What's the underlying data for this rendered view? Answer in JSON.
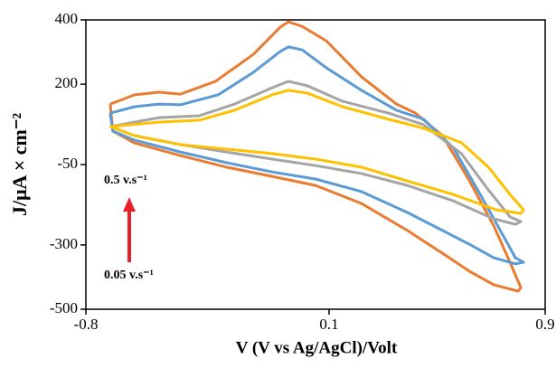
{
  "chart_data": {
    "type": "line",
    "x_label": "V (V vs Ag/AgCl)/Volt",
    "y_label": "J/μA × cm⁻²",
    "xlim": [
      -0.8,
      0.9
    ],
    "xticks": [
      -0.8,
      0.1,
      0.9
    ],
    "ylim": [
      -500,
      400
    ],
    "yticks": [
      400,
      200,
      -50,
      -300,
      -500
    ],
    "series": [
      {
        "color": "#e97c30",
        "x": [
          -0.71,
          -0.62,
          -0.53,
          -0.45,
          -0.32,
          -0.18,
          -0.08,
          -0.05,
          0.0,
          0.09,
          0.22,
          0.35,
          0.42,
          0.52,
          0.62,
          0.71,
          0.77,
          0.81,
          0.8,
          0.71,
          0.62,
          0.52,
          0.39,
          0.22,
          0.05,
          -0.11,
          -0.28,
          -0.45,
          -0.62,
          -0.7,
          -0.71
        ],
        "values": [
          138,
          167,
          175,
          169,
          209,
          293,
          378,
          394,
          380,
          335,
          223,
          138,
          110,
          40,
          -101,
          -241,
          -354,
          -433,
          -444,
          -424,
          -382,
          -326,
          -255,
          -171,
          -115,
          -87,
          -58,
          -22,
          17,
          54,
          138
        ]
      },
      {
        "color": "#5b9bd5",
        "x": [
          -0.71,
          -0.62,
          -0.53,
          -0.45,
          -0.31,
          -0.18,
          -0.08,
          -0.05,
          0.0,
          0.09,
          0.22,
          0.35,
          0.45,
          0.56,
          0.66,
          0.74,
          0.79,
          0.82,
          0.79,
          0.71,
          0.62,
          0.52,
          0.39,
          0.22,
          0.05,
          -0.11,
          -0.28,
          -0.45,
          -0.62,
          -0.7,
          -0.71
        ],
        "values": [
          110,
          130,
          138,
          136,
          167,
          237,
          302,
          316,
          307,
          251,
          181,
          119,
          91,
          2,
          -143,
          -264,
          -340,
          -354,
          -359,
          -340,
          -298,
          -255,
          -199,
          -134,
          -95,
          -73,
          -44,
          -11,
          26,
          54,
          110
        ]
      },
      {
        "color": "#a5a5a5",
        "x": [
          -0.71,
          -0.53,
          -0.38,
          -0.25,
          -0.11,
          -0.05,
          0.02,
          0.15,
          0.32,
          0.45,
          0.59,
          0.69,
          0.77,
          0.81,
          0.79,
          0.71,
          0.56,
          0.39,
          0.22,
          0.05,
          -0.11,
          -0.28,
          -0.45,
          -0.62,
          -0.71
        ],
        "values": [
          68,
          96,
          102,
          138,
          189,
          209,
          195,
          147,
          110,
          74,
          -16,
          -129,
          -213,
          -227,
          -236,
          -219,
          -163,
          -115,
          -78,
          -53,
          -33,
          -11,
          12,
          40,
          68
        ]
      },
      {
        "color": "#ffc000",
        "x": [
          -0.71,
          -0.53,
          -0.38,
          -0.25,
          -0.11,
          -0.05,
          0.02,
          0.15,
          0.32,
          0.45,
          0.59,
          0.69,
          0.77,
          0.82,
          0.81,
          0.72,
          0.56,
          0.39,
          0.22,
          0.05,
          -0.11,
          -0.28,
          -0.45,
          -0.62,
          -0.71
        ],
        "values": [
          68,
          82,
          88,
          119,
          167,
          181,
          172,
          130,
          91,
          63,
          18,
          -58,
          -143,
          -191,
          -202,
          -191,
          -143,
          -101,
          -58,
          -33,
          -16,
          -2,
          12,
          40,
          68
        ]
      }
    ],
    "annotations": [
      "0.5 v.s⁻¹",
      "0.05 v.s⁻¹"
    ]
  }
}
